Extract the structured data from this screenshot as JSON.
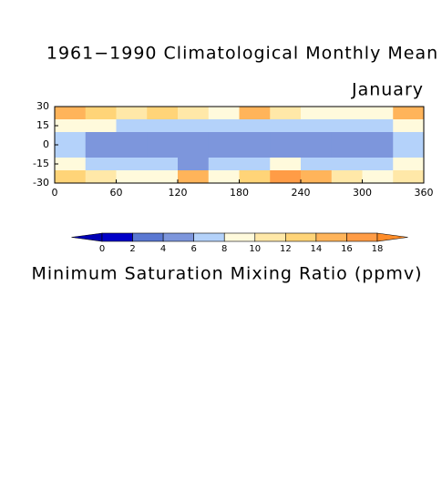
{
  "chart_data": {
    "type": "contour",
    "title": "1961−1990 Climatological Monthly Mean",
    "subtitle": "January",
    "colorbar_label": "Minimum Saturation Mixing Ratio (ppmv)",
    "xlim": [
      0,
      360
    ],
    "xticks": [
      0,
      60,
      120,
      180,
      240,
      300,
      360
    ],
    "ylim": [
      -30,
      30
    ],
    "yticks": [
      -30,
      -15,
      0,
      15,
      30
    ],
    "x": [
      15,
      45,
      75,
      105,
      135,
      165,
      195,
      225,
      255,
      285,
      315,
      345
    ],
    "y": [
      25,
      15,
      5,
      -5,
      -15,
      -25
    ],
    "z": [
      [
        14,
        12,
        10,
        12,
        10,
        9,
        14,
        10,
        9,
        9,
        9,
        14
      ],
      [
        9,
        9,
        7,
        7,
        7,
        7,
        7,
        6,
        6,
        7,
        7,
        9
      ],
      [
        6,
        5,
        5,
        5,
        4,
        4,
        5,
        5,
        5,
        5,
        5,
        6
      ],
      [
        6,
        5,
        5,
        4,
        4,
        4,
        5,
        5,
        5,
        5,
        5,
        6
      ],
      [
        9,
        7,
        7,
        7,
        5,
        6,
        7,
        9,
        7,
        7,
        7,
        9
      ],
      [
        12,
        11,
        9,
        9,
        14,
        9,
        12,
        16,
        14,
        10,
        9,
        11
      ]
    ],
    "levels": [
      0,
      2,
      4,
      6,
      8,
      10,
      12,
      14,
      16,
      18
    ],
    "colors": [
      "#0000b4",
      "#0000c8",
      "#5a78d2",
      "#7d96dc",
      "#b4d2fa",
      "#fffadc",
      "#ffe8a8",
      "#ffd478",
      "#ffb45a",
      "#ff9c46",
      "#ff8c28"
    ]
  }
}
